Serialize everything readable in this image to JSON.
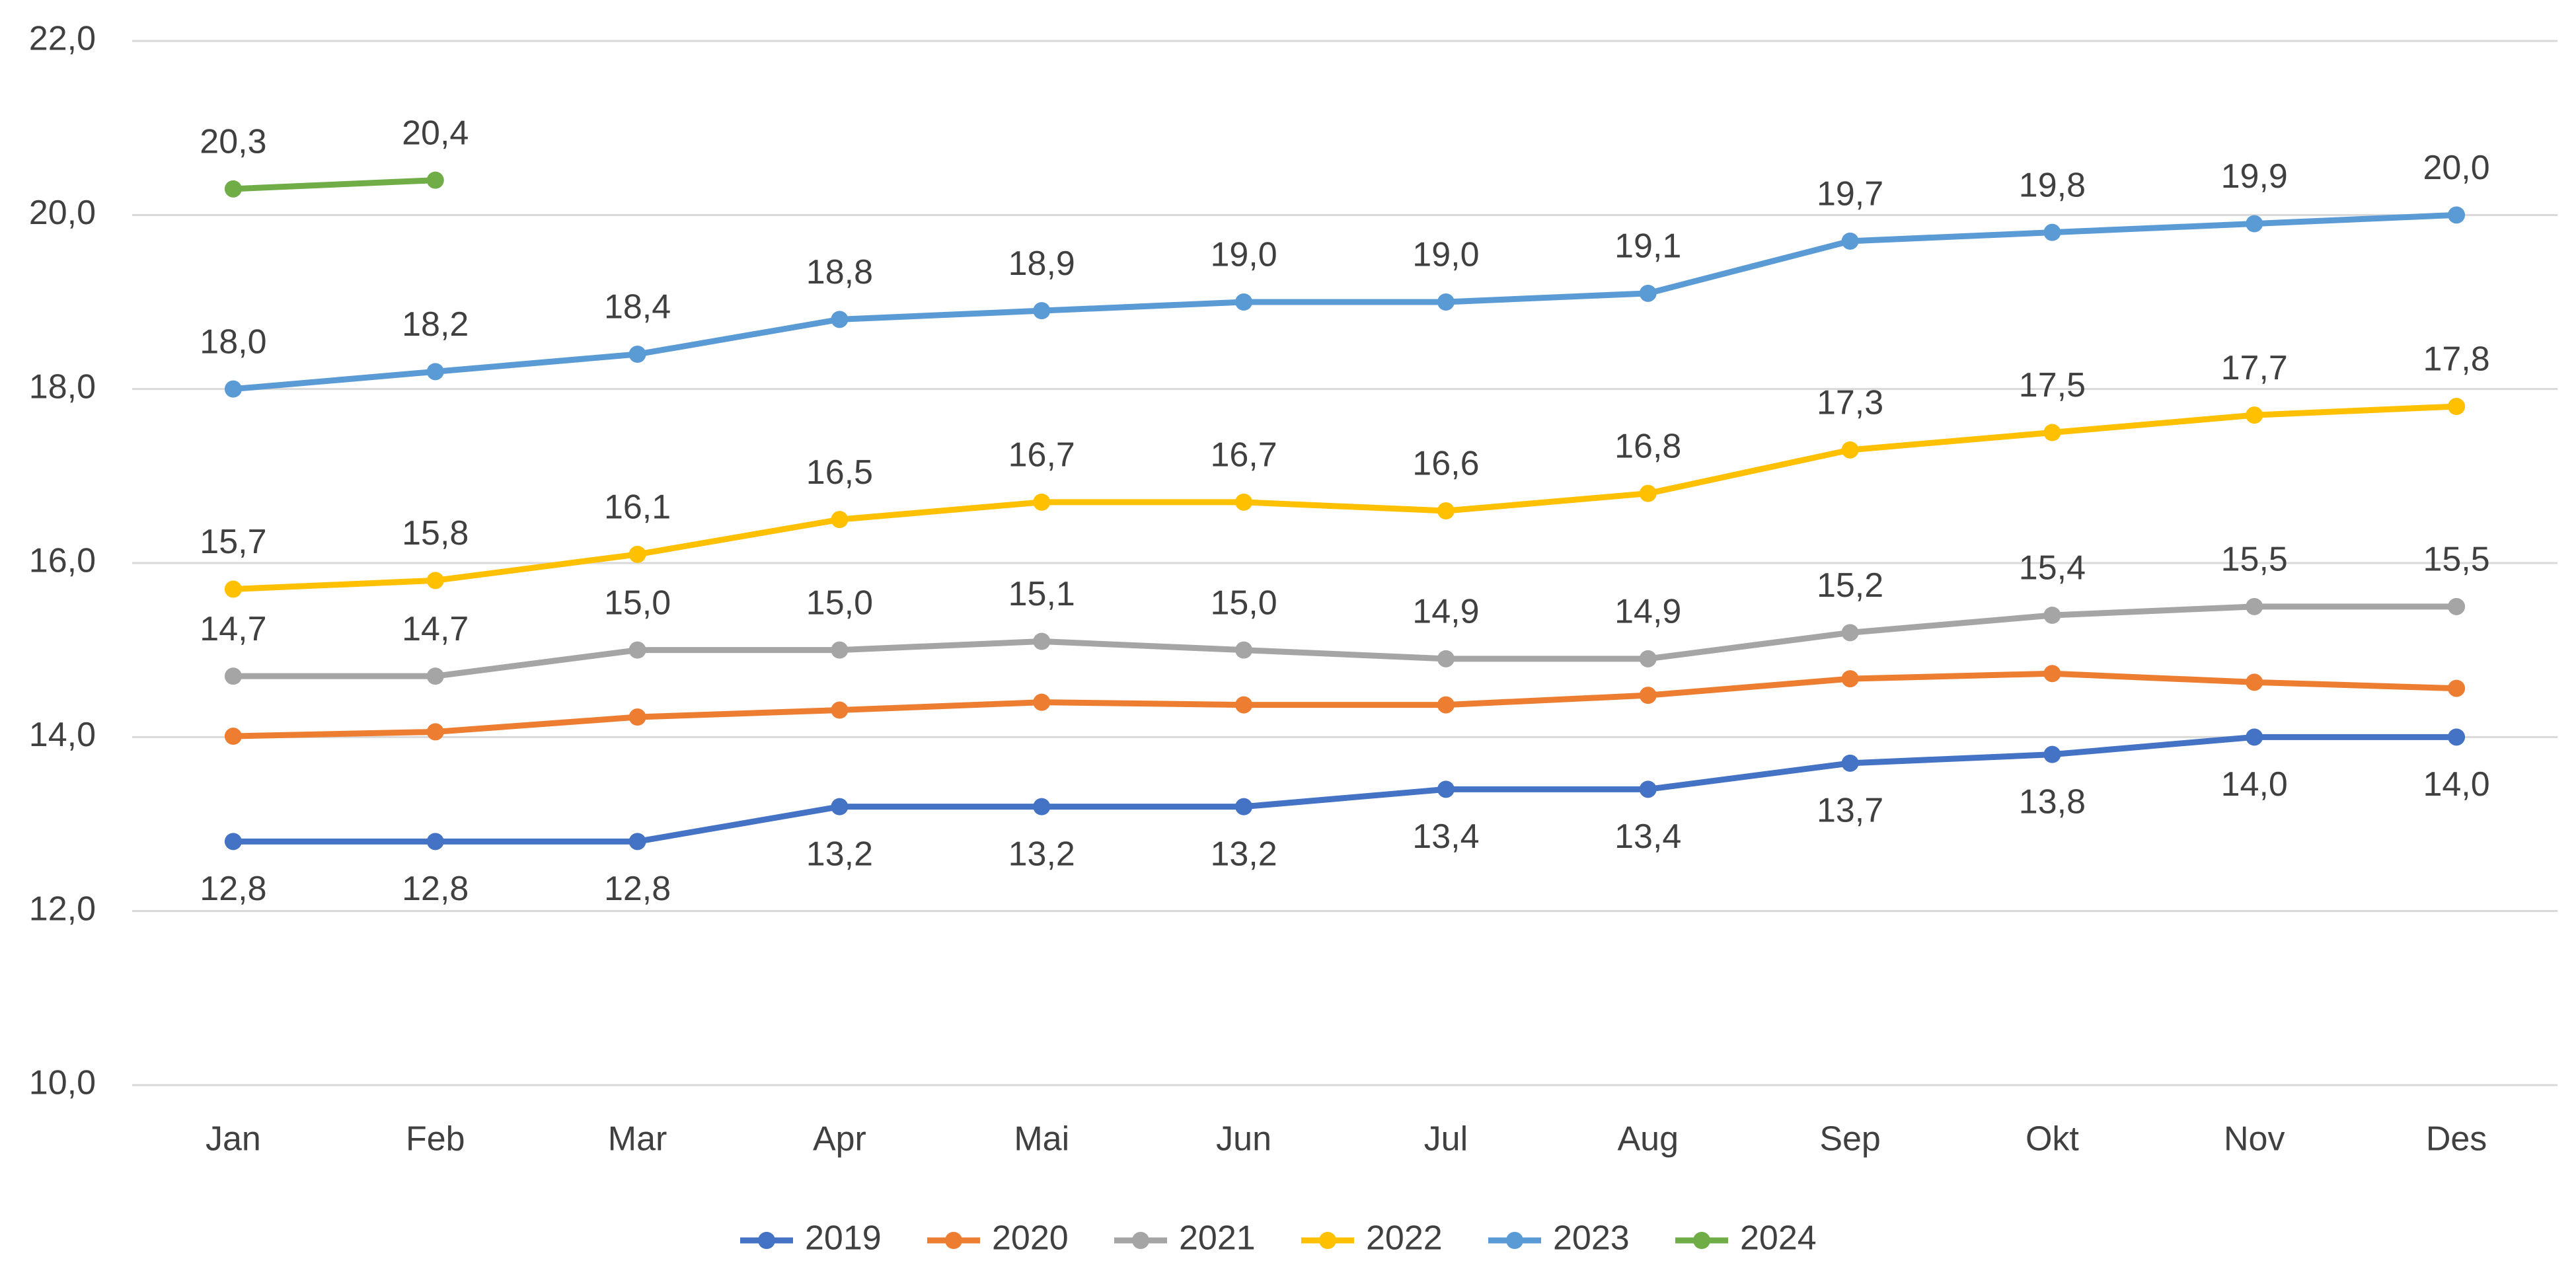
{
  "chart_data": {
    "type": "line",
    "categories": [
      "Jan",
      "Feb",
      "Mar",
      "Apr",
      "Mai",
      "Jun",
      "Jul",
      "Aug",
      "Sep",
      "Okt",
      "Nov",
      "Des"
    ],
    "series": [
      {
        "name": "2019",
        "color": "#4472c4",
        "values": [
          12.8,
          12.8,
          12.8,
          13.2,
          13.2,
          13.2,
          13.4,
          13.4,
          13.7,
          13.8,
          14.0,
          14.0
        ],
        "value_labels": [
          "12,8",
          "12,8",
          "12,8",
          "13,2",
          "13,2",
          "13,2",
          "13,4",
          "13,4",
          "13,7",
          "13,8",
          "14,0",
          "14,0"
        ]
      },
      {
        "name": "2020",
        "color": "#ed7d31",
        "values": [
          14.01,
          14.06,
          14.23,
          14.31,
          14.4,
          14.37,
          14.37,
          14.48,
          14.67,
          14.73,
          14.63,
          14.56
        ]
      },
      {
        "name": "2021",
        "color": "#a5a5a5",
        "values": [
          14.7,
          14.7,
          15.0,
          15.0,
          15.1,
          15.0,
          14.9,
          14.9,
          15.2,
          15.4,
          15.5,
          15.5
        ],
        "value_labels": [
          "14,7",
          "14,7",
          "15,0",
          "15,0",
          "15,1",
          "15,0",
          "14,9",
          "14,9",
          "15,2",
          "15,4",
          "15,5",
          "15,5"
        ]
      },
      {
        "name": "2022",
        "color": "#ffc000",
        "values": [
          15.7,
          15.8,
          16.1,
          16.5,
          16.7,
          16.7,
          16.6,
          16.8,
          17.3,
          17.5,
          17.7,
          17.8
        ],
        "value_labels": [
          "15,7",
          "15,8",
          "16,1",
          "16,5",
          "16,7",
          "16,7",
          "16,6",
          "16,8",
          "17,3",
          "17,5",
          "17,7",
          "17,8"
        ]
      },
      {
        "name": "2023",
        "color": "#5b9bd5",
        "values": [
          18.0,
          18.2,
          18.4,
          18.8,
          18.9,
          19.0,
          19.0,
          19.1,
          19.7,
          19.8,
          19.9,
          20.0
        ],
        "value_labels": [
          "18,0",
          "18,2",
          "18,4",
          "18,8",
          "18,9",
          "19,0",
          "19,0",
          "19,1",
          "19,7",
          "19,8",
          "19,9",
          "20,0"
        ]
      },
      {
        "name": "2024",
        "color": "#70ad47",
        "values": [
          20.3,
          20.4,
          null,
          null,
          null,
          null,
          null,
          null,
          null,
          null,
          null,
          null
        ],
        "value_labels": [
          "20,3",
          "20,4",
          null,
          null,
          null,
          null,
          null,
          null,
          null,
          null,
          null,
          null
        ]
      }
    ],
    "ylim": [
      10,
      22
    ],
    "yticks": [
      {
        "value": 10,
        "label": "10,0"
      },
      {
        "value": 12,
        "label": "12,0"
      },
      {
        "value": 14,
        "label": "14,0"
      },
      {
        "value": 16,
        "label": "16,0"
      },
      {
        "value": 18,
        "label": "18,0"
      },
      {
        "value": 20,
        "label": "20,0"
      },
      {
        "value": 22,
        "label": "22,0"
      }
    ],
    "grid": true,
    "legend": "bottom"
  }
}
